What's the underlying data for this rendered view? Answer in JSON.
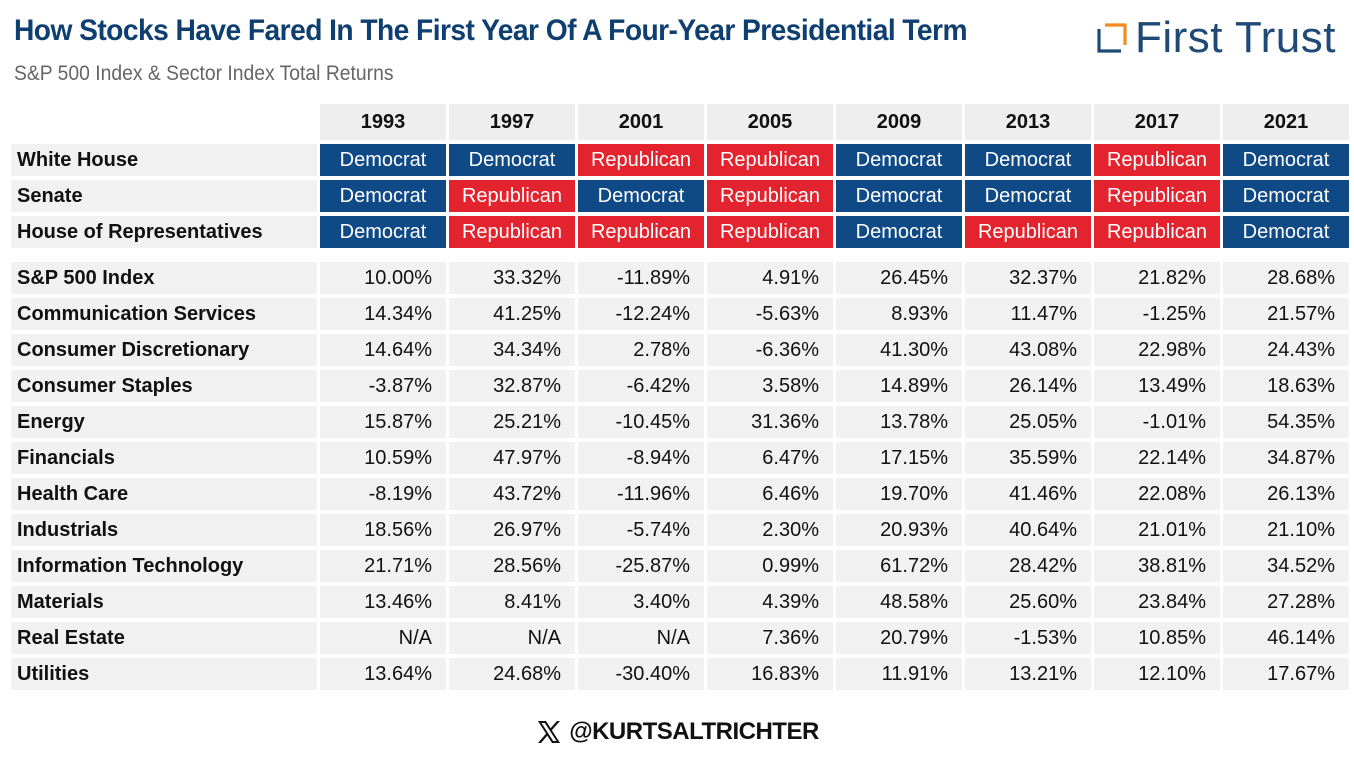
{
  "header": {
    "title": "How Stocks Have Fared In The First Year Of A Four-Year Presidential Term",
    "subtitle": "S&P 500 Index & Sector Index Total Returns",
    "logo_text": "First Trust"
  },
  "footer": {
    "handle": "@KURTSALTRICHTER",
    "icon": "x-logo-icon"
  },
  "colors": {
    "democrat": "#0f4a86",
    "republican": "#e3242f",
    "title": "#0f3e70"
  },
  "chart_data": {
    "type": "table",
    "years": [
      "1993",
      "1997",
      "2001",
      "2005",
      "2009",
      "2013",
      "2017",
      "2021"
    ],
    "control_rows": [
      {
        "label": "White House",
        "values": [
          "Democrat",
          "Democrat",
          "Republican",
          "Republican",
          "Democrat",
          "Democrat",
          "Republican",
          "Democrat"
        ]
      },
      {
        "label": "Senate",
        "values": [
          "Democrat",
          "Republican",
          "Democrat",
          "Republican",
          "Democrat",
          "Democrat",
          "Republican",
          "Democrat"
        ]
      },
      {
        "label": "House of Representatives",
        "values": [
          "Democrat",
          "Republican",
          "Republican",
          "Republican",
          "Democrat",
          "Republican",
          "Republican",
          "Democrat"
        ]
      }
    ],
    "return_rows": [
      {
        "label": "S&P 500 Index",
        "values": [
          "10.00%",
          "33.32%",
          "-11.89%",
          "4.91%",
          "26.45%",
          "32.37%",
          "21.82%",
          "28.68%"
        ]
      },
      {
        "label": "Communication Services",
        "values": [
          "14.34%",
          "41.25%",
          "-12.24%",
          "-5.63%",
          "8.93%",
          "11.47%",
          "-1.25%",
          "21.57%"
        ]
      },
      {
        "label": "Consumer Discretionary",
        "values": [
          "14.64%",
          "34.34%",
          "2.78%",
          "-6.36%",
          "41.30%",
          "43.08%",
          "22.98%",
          "24.43%"
        ]
      },
      {
        "label": "Consumer Staples",
        "values": [
          "-3.87%",
          "32.87%",
          "-6.42%",
          "3.58%",
          "14.89%",
          "26.14%",
          "13.49%",
          "18.63%"
        ]
      },
      {
        "label": "Energy",
        "values": [
          "15.87%",
          "25.21%",
          "-10.45%",
          "31.36%",
          "13.78%",
          "25.05%",
          "-1.01%",
          "54.35%"
        ]
      },
      {
        "label": "Financials",
        "values": [
          "10.59%",
          "47.97%",
          "-8.94%",
          "6.47%",
          "17.15%",
          "35.59%",
          "22.14%",
          "34.87%"
        ]
      },
      {
        "label": "Health Care",
        "values": [
          "-8.19%",
          "43.72%",
          "-11.96%",
          "6.46%",
          "19.70%",
          "41.46%",
          "22.08%",
          "26.13%"
        ]
      },
      {
        "label": "Industrials",
        "values": [
          "18.56%",
          "26.97%",
          "-5.74%",
          "2.30%",
          "20.93%",
          "40.64%",
          "21.01%",
          "21.10%"
        ]
      },
      {
        "label": "Information Technology",
        "values": [
          "21.71%",
          "28.56%",
          "-25.87%",
          "0.99%",
          "61.72%",
          "28.42%",
          "38.81%",
          "34.52%"
        ]
      },
      {
        "label": "Materials",
        "values": [
          "13.46%",
          "8.41%",
          "3.40%",
          "4.39%",
          "48.58%",
          "25.60%",
          "23.84%",
          "27.28%"
        ]
      },
      {
        "label": "Real Estate",
        "values": [
          "N/A",
          "N/A",
          "N/A",
          "7.36%",
          "20.79%",
          "-1.53%",
          "10.85%",
          "46.14%"
        ]
      },
      {
        "label": "Utilities",
        "values": [
          "13.64%",
          "24.68%",
          "-30.40%",
          "16.83%",
          "11.91%",
          "13.21%",
          "12.10%",
          "17.67%"
        ]
      }
    ]
  }
}
